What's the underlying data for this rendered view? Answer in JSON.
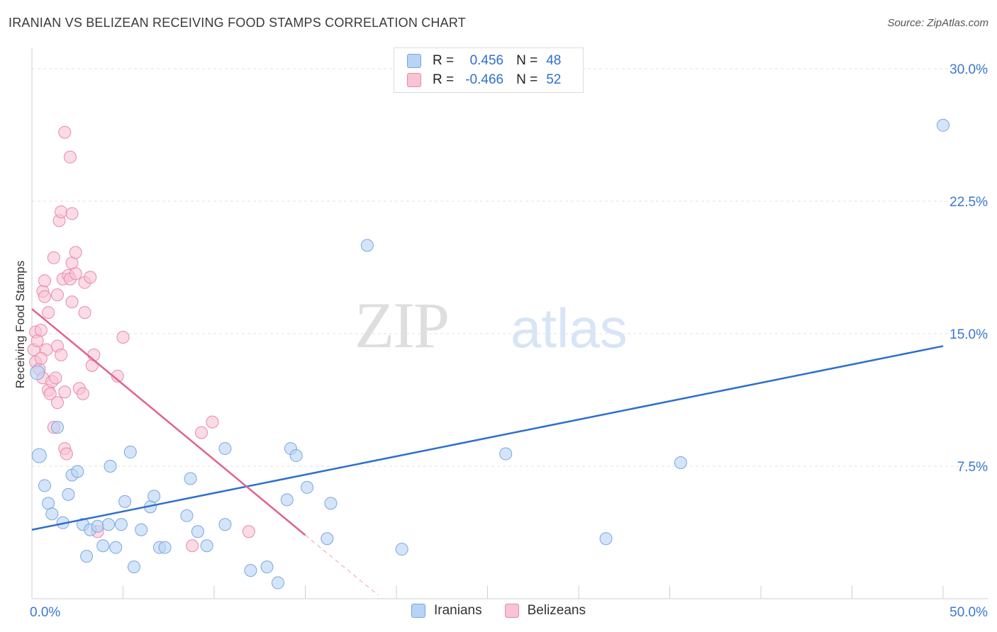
{
  "header": {
    "title": "IRANIAN VS BELIZEAN RECEIVING FOOD STAMPS CORRELATION CHART",
    "source": "Source: ZipAtlas.com"
  },
  "legend": {
    "row1": {
      "r_label": "R =",
      "r_value": "0.456",
      "n_label": "N =",
      "n_value": "48"
    },
    "row2": {
      "r_label": "R =",
      "r_value": "-0.466",
      "n_label": "N =",
      "n_value": "52"
    }
  },
  "bottom_legend": {
    "iranians": "Iranians",
    "belizeans": "Belizeans"
  },
  "watermark": {
    "zip": "ZIP",
    "atlas": "atlas"
  },
  "colors": {
    "iranians_fill": "#b7d3f5",
    "iranians_stroke": "#7aa6e0",
    "iranians_line": "#2e6fce",
    "belizeans_fill": "#f8c3d3",
    "belizeans_stroke": "#e88aa8",
    "belizeans_line": "#e0628e",
    "tick_label": "#3a78d0",
    "grid": "#e2e2e2"
  },
  "chart_data": {
    "type": "scatter",
    "title": "IRANIAN VS BELIZEAN RECEIVING FOOD STAMPS CORRELATION CHART",
    "xlabel": "",
    "ylabel": "Receiving Food Stamps",
    "xlim": [
      0,
      50
    ],
    "ylim": [
      0,
      30
    ],
    "x_tick_labels": [
      "0.0%",
      "50.0%"
    ],
    "y_ticks": [
      7.5,
      15.0,
      22.5,
      30.0
    ],
    "y_tick_labels": [
      "7.5%",
      "15.0%",
      "22.5%",
      "30.0%"
    ],
    "series": [
      {
        "name": "Iranians",
        "r": 0.456,
        "n": 48,
        "trend": {
          "x": [
            0,
            50
          ],
          "y": [
            3.9,
            14.3
          ]
        },
        "points": [
          [
            0.3,
            12.8
          ],
          [
            0.4,
            8.1
          ],
          [
            0.7,
            6.4
          ],
          [
            0.9,
            5.4
          ],
          [
            1.1,
            4.8
          ],
          [
            1.4,
            9.7
          ],
          [
            1.7,
            4.3
          ],
          [
            2.0,
            5.9
          ],
          [
            2.2,
            7.0
          ],
          [
            2.5,
            7.2
          ],
          [
            2.8,
            4.2
          ],
          [
            3.0,
            2.4
          ],
          [
            3.2,
            3.9
          ],
          [
            3.6,
            4.1
          ],
          [
            3.9,
            3.0
          ],
          [
            4.2,
            4.2
          ],
          [
            4.3,
            7.5
          ],
          [
            4.6,
            2.9
          ],
          [
            4.9,
            4.2
          ],
          [
            5.1,
            5.5
          ],
          [
            5.4,
            8.3
          ],
          [
            5.6,
            1.8
          ],
          [
            6.0,
            3.9
          ],
          [
            6.5,
            5.2
          ],
          [
            6.7,
            5.8
          ],
          [
            7.0,
            2.9
          ],
          [
            7.3,
            2.9
          ],
          [
            8.5,
            4.7
          ],
          [
            8.7,
            6.8
          ],
          [
            9.1,
            3.8
          ],
          [
            9.6,
            3.0
          ],
          [
            10.6,
            4.2
          ],
          [
            12.0,
            1.6
          ],
          [
            12.9,
            1.8
          ],
          [
            13.5,
            0.9
          ],
          [
            14.0,
            5.6
          ],
          [
            14.2,
            8.5
          ],
          [
            14.5,
            8.1
          ],
          [
            15.1,
            6.3
          ],
          [
            16.2,
            3.4
          ],
          [
            16.4,
            5.4
          ],
          [
            18.4,
            20.0
          ],
          [
            20.3,
            2.8
          ],
          [
            26.0,
            8.2
          ],
          [
            31.5,
            3.4
          ],
          [
            35.6,
            7.7
          ],
          [
            50.0,
            26.8
          ],
          [
            10.6,
            8.5
          ]
        ]
      },
      {
        "name": "Belizeans",
        "r": -0.466,
        "n": 52,
        "trend": {
          "x": [
            0,
            15
          ],
          "y": [
            16.4,
            3.6
          ]
        },
        "trend_dashed": {
          "x": [
            15,
            19
          ],
          "y": [
            3.6,
            0.2
          ]
        },
        "points": [
          [
            0.1,
            14.1
          ],
          [
            0.2,
            15.1
          ],
          [
            0.2,
            13.4
          ],
          [
            0.3,
            14.6
          ],
          [
            0.4,
            13.0
          ],
          [
            0.5,
            15.2
          ],
          [
            0.6,
            17.4
          ],
          [
            0.6,
            12.5
          ],
          [
            0.7,
            17.1
          ],
          [
            0.7,
            18.0
          ],
          [
            0.8,
            14.1
          ],
          [
            0.9,
            16.2
          ],
          [
            0.9,
            11.8
          ],
          [
            1.0,
            11.6
          ],
          [
            1.1,
            12.3
          ],
          [
            1.2,
            19.3
          ],
          [
            1.2,
            9.7
          ],
          [
            1.3,
            12.5
          ],
          [
            1.4,
            17.2
          ],
          [
            1.4,
            14.3
          ],
          [
            1.4,
            11.1
          ],
          [
            1.5,
            21.4
          ],
          [
            1.6,
            21.9
          ],
          [
            1.6,
            13.8
          ],
          [
            1.7,
            18.1
          ],
          [
            1.8,
            8.5
          ],
          [
            1.8,
            11.7
          ],
          [
            1.8,
            26.4
          ],
          [
            1.9,
            8.2
          ],
          [
            2.0,
            18.3
          ],
          [
            2.1,
            18.1
          ],
          [
            2.1,
            25.0
          ],
          [
            2.2,
            21.8
          ],
          [
            2.2,
            19.0
          ],
          [
            2.2,
            16.8
          ],
          [
            2.4,
            19.6
          ],
          [
            2.4,
            18.4
          ],
          [
            2.6,
            11.9
          ],
          [
            2.9,
            17.9
          ],
          [
            2.9,
            16.2
          ],
          [
            3.2,
            18.2
          ],
          [
            3.3,
            13.2
          ],
          [
            3.4,
            13.8
          ],
          [
            3.6,
            3.8
          ],
          [
            4.7,
            12.6
          ],
          [
            5.0,
            14.8
          ],
          [
            8.8,
            3.0
          ],
          [
            9.3,
            9.4
          ],
          [
            9.9,
            10.0
          ],
          [
            11.9,
            3.8
          ],
          [
            2.8,
            11.6
          ],
          [
            0.5,
            13.6
          ]
        ]
      }
    ]
  }
}
